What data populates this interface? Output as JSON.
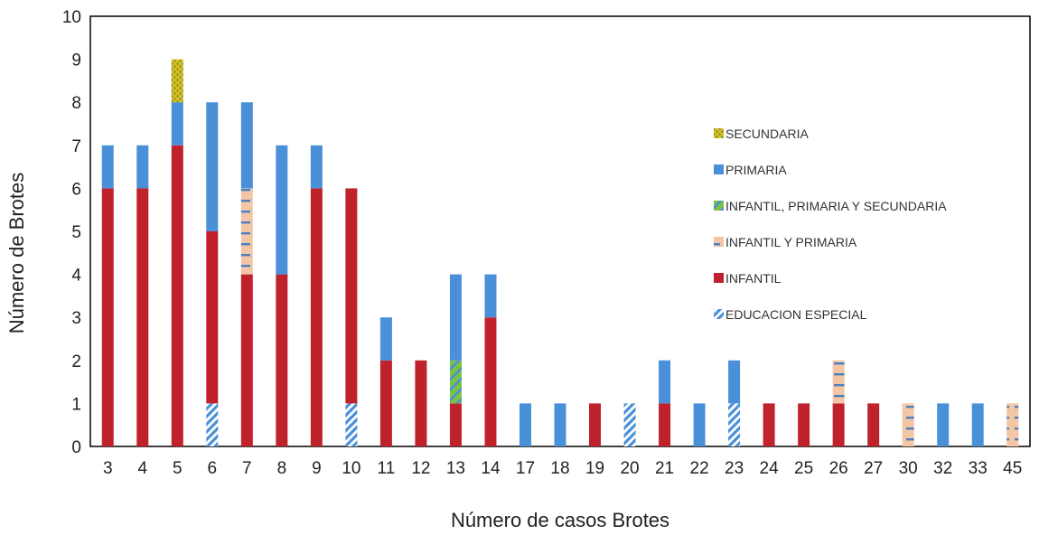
{
  "chart_data": {
    "type": "bar",
    "stacked": true,
    "xlabel": "Número de casos Brotes",
    "ylabel": "Número de Brotes",
    "ylim": [
      0,
      10
    ],
    "yticks": [
      "0",
      "1",
      "2",
      "3",
      "4",
      "5",
      "6",
      "7",
      "8",
      "9",
      "10"
    ],
    "categories": [
      "3",
      "4",
      "5",
      "6",
      "7",
      "8",
      "9",
      "10",
      "11",
      "12",
      "13",
      "14",
      "17",
      "18",
      "19",
      "20",
      "21",
      "22",
      "23",
      "24",
      "25",
      "26",
      "27",
      "30",
      "32",
      "33",
      "45"
    ],
    "legend_position": "center-right",
    "series": [
      {
        "name": "EDUCACION ESPECIAL",
        "key": "educacion_especial",
        "color": "#4a90d9",
        "pattern": "diagonal-stripes",
        "values": [
          0,
          0,
          0,
          1,
          0,
          0,
          0,
          1,
          0,
          0,
          0,
          0,
          0,
          0,
          0,
          1,
          0,
          0,
          1,
          0,
          0,
          0,
          0,
          0,
          0,
          0,
          0
        ]
      },
      {
        "name": "INFANTIL",
        "key": "infantil",
        "color": "#c0222b",
        "pattern": "solid",
        "values": [
          6,
          6,
          7,
          4,
          4,
          4,
          6,
          5,
          2,
          2,
          1,
          3,
          0,
          0,
          1,
          0,
          1,
          0,
          0,
          1,
          1,
          1,
          1,
          0,
          0,
          0,
          0
        ]
      },
      {
        "name": "INFANTIL, PRIMARIA Y SECUNDARIA",
        "key": "infantil_primaria_secundaria",
        "color": "#7cc242",
        "pattern": "diagonal-stripes-blue",
        "values": [
          0,
          0,
          0,
          0,
          0,
          0,
          0,
          0,
          0,
          0,
          1,
          0,
          0,
          0,
          0,
          0,
          0,
          0,
          0,
          0,
          0,
          0,
          0,
          0,
          0,
          0,
          0
        ]
      },
      {
        "name": "INFANTIL Y PRIMARIA",
        "key": "infantil_primaria",
        "color": "#f4c6a6",
        "pattern": "horizontal-dashes-blue",
        "values": [
          0,
          0,
          0,
          0,
          2,
          0,
          0,
          0,
          0,
          0,
          0,
          0,
          0,
          0,
          0,
          0,
          0,
          0,
          0,
          0,
          0,
          1,
          0,
          1,
          0,
          0,
          1
        ]
      },
      {
        "name": "PRIMARIA",
        "key": "primaria",
        "color": "#4a90d9",
        "pattern": "solid",
        "values": [
          1,
          1,
          1,
          3,
          2,
          3,
          1,
          0,
          1,
          0,
          2,
          1,
          1,
          1,
          0,
          0,
          1,
          1,
          1,
          0,
          0,
          0,
          0,
          0,
          1,
          1,
          0
        ]
      },
      {
        "name": "SECUNDARIA",
        "key": "secundaria",
        "color": "#e8b81c",
        "pattern": "dots-green",
        "values": [
          0,
          0,
          1,
          0,
          0,
          0,
          0,
          0,
          0,
          0,
          0,
          0,
          0,
          0,
          0,
          0,
          0,
          0,
          0,
          0,
          0,
          0,
          0,
          0,
          0,
          0,
          0
        ]
      }
    ],
    "legend_order": [
      "secundaria",
      "primaria",
      "infantil_primaria_secundaria",
      "infantil_primaria",
      "infantil",
      "educacion_especial"
    ]
  }
}
